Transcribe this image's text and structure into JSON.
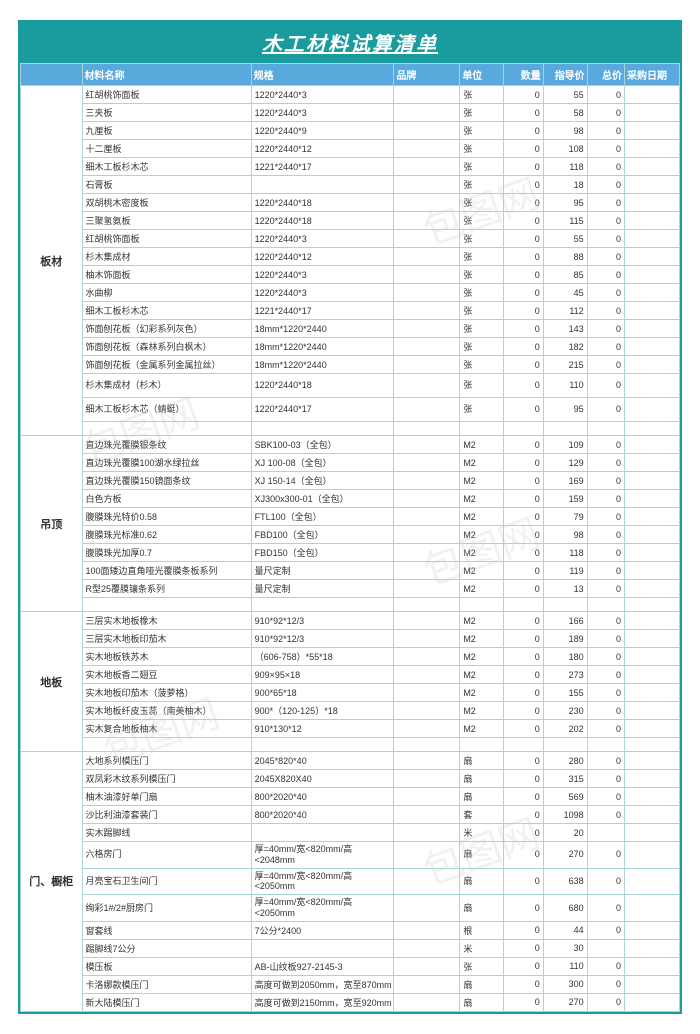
{
  "title": "木工材料试算清单",
  "columns": [
    "材料名称",
    "规格",
    "品牌",
    "单位",
    "数量",
    "指导价",
    "总价",
    "采购日期"
  ],
  "watermark": "包图网",
  "sections": [
    {
      "category": "板材",
      "blank_after": 1,
      "rows": [
        {
          "name": "红胡桃饰面板",
          "spec": "1220*2440*3",
          "unit": "张",
          "qty": 0,
          "price": 55,
          "total": 0
        },
        {
          "name": "三夹板",
          "spec": "1220*2440*3",
          "unit": "张",
          "qty": 0,
          "price": 58,
          "total": 0
        },
        {
          "name": "九厘板",
          "spec": "1220*2440*9",
          "unit": "张",
          "qty": 0,
          "price": 98,
          "total": 0
        },
        {
          "name": "十二厘板",
          "spec": "1220*2440*12",
          "unit": "张",
          "qty": 0,
          "price": 108,
          "total": 0
        },
        {
          "name": "细木工板杉木芯",
          "spec": "1221*2440*17",
          "unit": "张",
          "qty": 0,
          "price": 118,
          "total": 0
        },
        {
          "name": "石膏板",
          "spec": "",
          "unit": "张",
          "qty": 0,
          "price": 18,
          "total": 0
        },
        {
          "name": "双胡桃木密度板",
          "spec": "1220*2440*18",
          "unit": "张",
          "qty": 0,
          "price": 95,
          "total": 0
        },
        {
          "name": "三聚氢氨板",
          "spec": "1220*2440*18",
          "unit": "张",
          "qty": 0,
          "price": 115,
          "total": 0
        },
        {
          "name": "红胡桃饰面板",
          "spec": "1220*2440*3",
          "unit": "张",
          "qty": 0,
          "price": 55,
          "total": 0
        },
        {
          "name": "杉木集成材",
          "spec": "1220*2440*12",
          "unit": "张",
          "qty": 0,
          "price": 88,
          "total": 0
        },
        {
          "name": "柚木饰面板",
          "spec": "1220*2440*3",
          "unit": "张",
          "qty": 0,
          "price": 85,
          "total": 0
        },
        {
          "name": "水曲柳",
          "spec": "1220*2440*3",
          "unit": "张",
          "qty": 0,
          "price": 45,
          "total": 0
        },
        {
          "name": "细木工板杉木芯",
          "spec": "1221*2440*17",
          "unit": "张",
          "qty": 0,
          "price": 112,
          "total": 0
        },
        {
          "name": "饰面刨花板（幻彩系列灰色）",
          "spec": "18mm*1220*2440",
          "unit": "张",
          "qty": 0,
          "price": 143,
          "total": 0
        },
        {
          "name": "饰面刨花板（森林系列白枫木）",
          "spec": "18mm*1220*2440",
          "unit": "张",
          "qty": 0,
          "price": 182,
          "total": 0
        },
        {
          "name": "饰面刨花板（金属系列金属拉丝）",
          "spec": "18mm*1220*2440",
          "unit": "张",
          "qty": 0,
          "price": 215,
          "total": 0
        },
        {
          "name": "杉木集成材（杉木）",
          "spec": "1220*2440*18",
          "unit": "张",
          "qty": 0,
          "price": 110,
          "total": 0,
          "tall": true
        },
        {
          "name": "细木工板杉木芯（蜻蜓）",
          "spec": "1220*2440*17",
          "unit": "张",
          "qty": 0,
          "price": 95,
          "total": 0,
          "tall": true
        }
      ]
    },
    {
      "category": "吊顶",
      "blank_after": 1,
      "rows": [
        {
          "name": "直边珠光覆膜银条纹",
          "spec": "SBK100-03（全包）",
          "unit": "M2",
          "qty": 0,
          "price": 109,
          "total": 0
        },
        {
          "name": "直边珠光覆膜100湖水绿拉丝",
          "spec": "XJ 100-08（全包）",
          "unit": "M2",
          "qty": 0,
          "price": 129,
          "total": 0
        },
        {
          "name": "直边珠光覆膜150镜面条纹",
          "spec": "XJ 150-14（全包）",
          "unit": "M2",
          "qty": 0,
          "price": 169,
          "total": 0
        },
        {
          "name": "白色方板",
          "spec": "XJ300x300-01（全包）",
          "unit": "M2",
          "qty": 0,
          "price": 159,
          "total": 0
        },
        {
          "name": "腹膜珠光特价0.58",
          "spec": "FTL100（全包）",
          "unit": "M2",
          "qty": 0,
          "price": 79,
          "total": 0
        },
        {
          "name": "腹膜珠光标准0.62",
          "spec": "FBD100（全包）",
          "unit": "M2",
          "qty": 0,
          "price": 98,
          "total": 0
        },
        {
          "name": "腹膜珠光加厚0.7",
          "spec": "FBD150（全包）",
          "unit": "M2",
          "qty": 0,
          "price": 118,
          "total": 0
        },
        {
          "name": "100面矮边直角哑光覆膜条板系列",
          "spec": "量尺定制",
          "unit": "M2",
          "qty": 0,
          "price": 119,
          "total": 0
        },
        {
          "name": "R型25覆膜镶条系列",
          "spec": "量尺定制",
          "unit": "M2",
          "qty": 0,
          "price": 13,
          "total": 0
        }
      ]
    },
    {
      "category": "地板",
      "blank_after": 1,
      "rows": [
        {
          "name": "三层实木地板橡木",
          "spec": "910*92*12/3",
          "unit": "M2",
          "qty": 0,
          "price": 166,
          "total": 0
        },
        {
          "name": "三层实木地板印茄木",
          "spec": "910*92*12/3",
          "unit": "M2",
          "qty": 0,
          "price": 189,
          "total": 0
        },
        {
          "name": "实木地板铁苏木",
          "spec": "（606-758）*55*18",
          "unit": "M2",
          "qty": 0,
          "price": 180,
          "total": 0
        },
        {
          "name": "实木地板香二翅豆",
          "spec": "909×95×18",
          "unit": "M2",
          "qty": 0,
          "price": 273,
          "total": 0
        },
        {
          "name": "实木地板印茄木（菠萝格）",
          "spec": "900*65*18",
          "unit": "M2",
          "qty": 0,
          "price": 155,
          "total": 0
        },
        {
          "name": "实木地板纤皮玉蕊（南美柚木）",
          "spec": "900*（120-125）*18",
          "unit": "M2",
          "qty": 0,
          "price": 230,
          "total": 0
        },
        {
          "name": "实木复合地板柚木",
          "spec": "910*130*12",
          "unit": "M2",
          "qty": 0,
          "price": 202,
          "total": 0
        }
      ]
    },
    {
      "category": "门、橱柜",
      "blank_after": 0,
      "rows": [
        {
          "name": "大地系列模压门",
          "spec": "2045*820*40",
          "unit": "扇",
          "qty": 0,
          "price": 280,
          "total": 0
        },
        {
          "name": "双凤彩木纹系列模压门",
          "spec": "2045X820X40",
          "unit": "扇",
          "qty": 0,
          "price": 315,
          "total": 0
        },
        {
          "name": "柚木油漆好单门扇",
          "spec": "800*2020*40",
          "unit": "扇",
          "qty": 0,
          "price": 569,
          "total": 0
        },
        {
          "name": "沙比利油漆套装门",
          "spec": "800*2020*40",
          "unit": "套",
          "qty": 0,
          "price": 1098,
          "total": 0
        },
        {
          "name": "实木踢脚线",
          "spec": "",
          "unit": "米",
          "qty": 0,
          "price": 20,
          "total": "",
          "blank_total": true
        },
        {
          "name": "六格房门",
          "spec": "厚=40mm/宽<820mm/高<2048mm",
          "unit": "扇",
          "qty": 0,
          "price": 270,
          "total": 0,
          "tall": true
        },
        {
          "name": "月亮宝石卫生间门",
          "spec": "厚=40mm/宽<820mm/高<2050mm",
          "unit": "扇",
          "qty": 0,
          "price": 638,
          "total": 0,
          "tall": true
        },
        {
          "name": "绚彩1#/2#厨房门",
          "spec": "厚=40mm/宽<820mm/高<2050mm",
          "unit": "扇",
          "qty": 0,
          "price": 680,
          "total": 0,
          "tall": true
        },
        {
          "name": "窗套线",
          "spec": "7公分*2400",
          "unit": "根",
          "qty": 0,
          "price": 44,
          "total": 0
        },
        {
          "name": "踢脚线7公分",
          "spec": "",
          "unit": "米",
          "qty": 0,
          "price": 30,
          "total": "",
          "blank_total": true
        },
        {
          "name": "模压板",
          "spec": "AB-山纹板927-2145-3",
          "unit": "张",
          "qty": 0,
          "price": 110,
          "total": 0
        },
        {
          "name": "卡洛娜款模压门",
          "spec": "高度可做到2050mm，宽至870mm",
          "unit": "扇",
          "qty": 0,
          "price": 300,
          "total": 0
        },
        {
          "name": "新大陆模压门",
          "spec": "高度可做到2150mm，宽至920mm",
          "unit": "扇",
          "qty": 0,
          "price": 270,
          "total": 0
        }
      ]
    }
  ]
}
